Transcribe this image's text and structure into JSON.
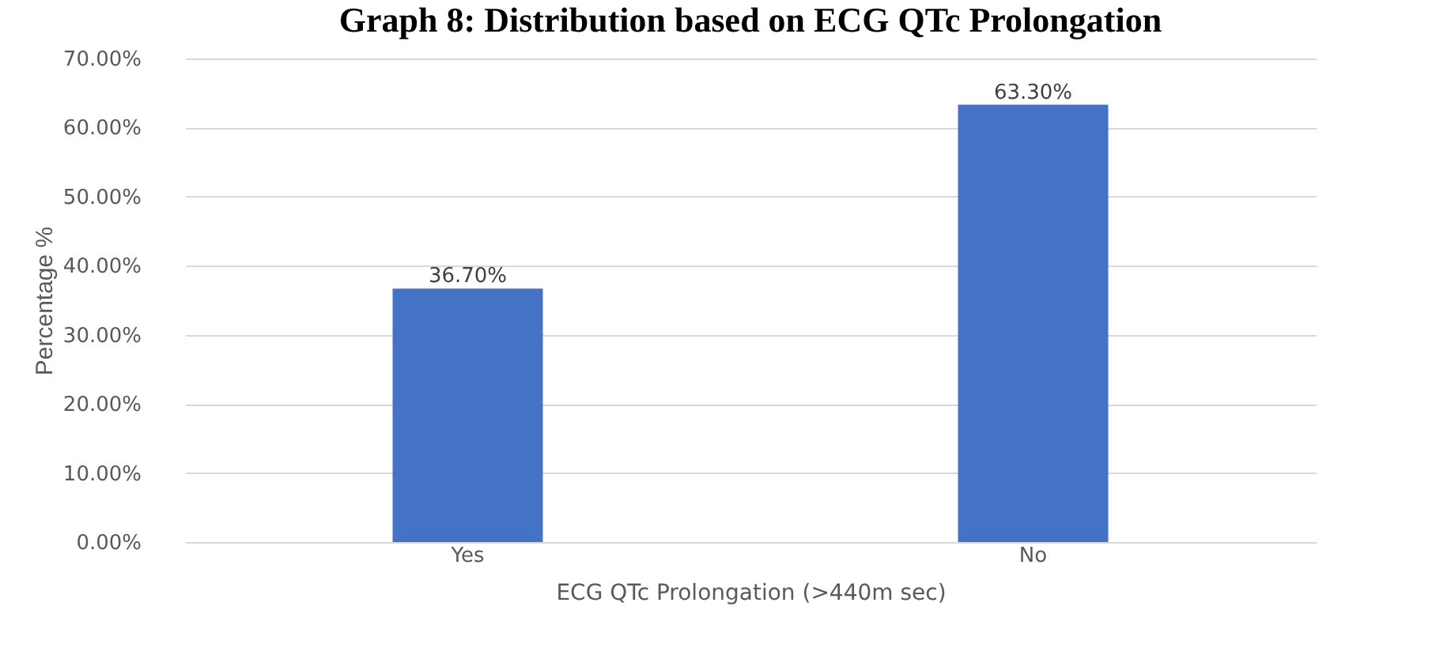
{
  "chart_data": {
    "type": "bar",
    "title": "Graph 8: Distribution based on ECG QTc Prolongation",
    "xlabel": "ECG QTc Prolongation (>440m sec)",
    "ylabel": "Percentage %",
    "categories": [
      "Yes",
      "No"
    ],
    "values": [
      36.7,
      63.3
    ],
    "value_labels": [
      "36.70%",
      "63.30%"
    ],
    "color": "#4472c4",
    "ylim": [
      0,
      70
    ],
    "yticks": [
      {
        "value": 0,
        "label": "0.00%"
      },
      {
        "value": 10,
        "label": "10.00%"
      },
      {
        "value": 20,
        "label": "20.00%"
      },
      {
        "value": 30,
        "label": "30.00%"
      },
      {
        "value": 40,
        "label": "40.00%"
      },
      {
        "value": 50,
        "label": "50.00%"
      },
      {
        "value": 60,
        "label": "60.00%"
      },
      {
        "value": 70,
        "label": "70.00%"
      }
    ],
    "grid": true
  }
}
